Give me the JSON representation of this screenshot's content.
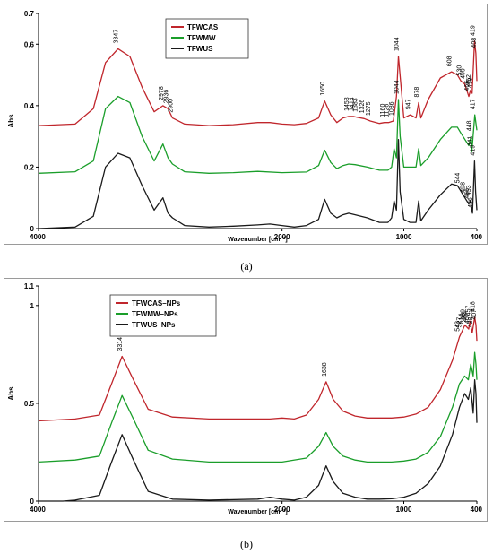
{
  "chart_data": [
    {
      "type": "line",
      "title": "",
      "xlabel": "Wavenumber [cm⁻¹]",
      "ylabel": "Abs",
      "xlim": [
        4000,
        400
      ],
      "ylim": [
        0,
        0.7
      ],
      "xticks": [
        "4000",
        "2000",
        "1000",
        "400"
      ],
      "yticks": [
        "0",
        "0.2",
        "0.4",
        "0.6",
        "0.7"
      ],
      "legend": {
        "position": "top-left"
      },
      "series": [
        {
          "name": "TFWCAS",
          "color": "#c0262c",
          "x": [
            4000,
            3700,
            3550,
            3450,
            3347,
            3250,
            3150,
            3050,
            2978,
            2936,
            2900,
            2800,
            2600,
            2400,
            2200,
            2100,
            2000,
            1900,
            1800,
            1700,
            1650,
            1600,
            1550,
            1500,
            1453,
            1414,
            1383,
            1326,
            1275,
            1200,
            1160,
            1126,
            1086,
            1060,
            1044,
            1020,
            1000,
            947,
            900,
            878,
            860,
            800,
            700,
            608,
            560,
            530,
            499,
            466,
            452,
            439,
            419,
            408,
            400
          ],
          "y": [
            0.335,
            0.34,
            0.39,
            0.54,
            0.585,
            0.56,
            0.46,
            0.38,
            0.4,
            0.39,
            0.36,
            0.34,
            0.335,
            0.338,
            0.345,
            0.345,
            0.34,
            0.338,
            0.342,
            0.36,
            0.415,
            0.37,
            0.345,
            0.36,
            0.365,
            0.365,
            0.362,
            0.358,
            0.35,
            0.342,
            0.345,
            0.345,
            0.35,
            0.43,
            0.56,
            0.45,
            0.36,
            0.37,
            0.36,
            0.41,
            0.36,
            0.42,
            0.49,
            0.51,
            0.5,
            0.48,
            0.47,
            0.43,
            0.45,
            0.44,
            0.61,
            0.57,
            0.48
          ]
        },
        {
          "name": "TFWMW",
          "color": "#1a9e2a",
          "x": [
            4000,
            3700,
            3550,
            3450,
            3347,
            3250,
            3150,
            3050,
            2978,
            2936,
            2900,
            2800,
            2600,
            2400,
            2200,
            2000,
            1800,
            1700,
            1650,
            1600,
            1550,
            1500,
            1453,
            1400,
            1300,
            1200,
            1130,
            1100,
            1080,
            1060,
            1044,
            1030,
            1000,
            950,
            900,
            878,
            860,
            800,
            700,
            608,
            560,
            530,
            466,
            448,
            441,
            417,
            400
          ],
          "y": [
            0.18,
            0.185,
            0.22,
            0.39,
            0.43,
            0.41,
            0.3,
            0.22,
            0.275,
            0.23,
            0.21,
            0.185,
            0.18,
            0.182,
            0.186,
            0.182,
            0.184,
            0.205,
            0.255,
            0.215,
            0.195,
            0.205,
            0.21,
            0.208,
            0.2,
            0.19,
            0.19,
            0.2,
            0.26,
            0.23,
            0.42,
            0.3,
            0.2,
            0.2,
            0.2,
            0.26,
            0.205,
            0.23,
            0.29,
            0.33,
            0.33,
            0.31,
            0.27,
            0.3,
            0.25,
            0.37,
            0.32
          ]
        },
        {
          "name": "TFWUS",
          "color": "#1a1a1a",
          "x": [
            4000,
            3700,
            3550,
            3450,
            3347,
            3250,
            3150,
            3050,
            2978,
            2936,
            2900,
            2800,
            2600,
            2400,
            2200,
            2100,
            2000,
            1900,
            1800,
            1700,
            1650,
            1600,
            1550,
            1500,
            1453,
            1400,
            1300,
            1200,
            1130,
            1100,
            1080,
            1060,
            1044,
            1030,
            1000,
            950,
            900,
            878,
            860,
            800,
            700,
            608,
            560,
            544,
            498,
            466,
            453,
            436,
            419,
            410,
            400
          ],
          "y": [
            0,
            0.005,
            0.04,
            0.2,
            0.245,
            0.23,
            0.14,
            0.06,
            0.1,
            0.05,
            0.035,
            0.01,
            0.005,
            0.008,
            0.012,
            0.015,
            0.01,
            0.005,
            0.01,
            0.03,
            0.095,
            0.05,
            0.035,
            0.045,
            0.05,
            0.045,
            0.035,
            0.02,
            0.02,
            0.035,
            0.09,
            0.06,
            0.29,
            0.12,
            0.03,
            0.02,
            0.02,
            0.09,
            0.025,
            0.06,
            0.11,
            0.145,
            0.14,
            0.13,
            0.1,
            0.08,
            0.09,
            0.05,
            0.22,
            0.12,
            0.06
          ]
        }
      ],
      "annotations": [
        "3347",
        "2978",
        "2936",
        "2900",
        "1650",
        "1453",
        "1414",
        "1383",
        "1326",
        "1275",
        "1160",
        "1126",
        "1086",
        "1044",
        "947",
        "878",
        "608",
        "530",
        "499",
        "466",
        "452",
        "439",
        "419",
        "408",
        "1044",
        "448",
        "441",
        "417",
        "544",
        "498",
        "466",
        "453",
        "436",
        "419"
      ]
    },
    {
      "type": "line",
      "title": "",
      "xlabel": "Wavenumber [cm⁻¹]",
      "ylabel": "Abs",
      "xlim": [
        4000,
        400
      ],
      "ylim": [
        0,
        1.1
      ],
      "xticks": [
        "4000",
        "2000",
        "1000",
        "400"
      ],
      "yticks": [
        "0",
        "0.5",
        "1",
        "1.1"
      ],
      "legend": {
        "position": "top-left"
      },
      "series": [
        {
          "name": "TFWCAS–NPs",
          "color": "#c0262c",
          "x": [
            4000,
            3700,
            3500,
            3400,
            3314,
            3220,
            3100,
            2900,
            2600,
            2300,
            2100,
            2000,
            1900,
            1800,
            1700,
            1638,
            1580,
            1500,
            1400,
            1300,
            1200,
            1100,
            1000,
            900,
            800,
            700,
            600,
            543,
            527,
            499,
            467,
            457,
            438,
            418,
            407,
            400
          ],
          "y": [
            0.41,
            0.42,
            0.44,
            0.6,
            0.74,
            0.62,
            0.47,
            0.43,
            0.42,
            0.42,
            0.42,
            0.425,
            0.42,
            0.44,
            0.52,
            0.61,
            0.52,
            0.46,
            0.435,
            0.425,
            0.425,
            0.425,
            0.43,
            0.445,
            0.48,
            0.57,
            0.72,
            0.84,
            0.86,
            0.9,
            0.88,
            0.92,
            0.86,
            0.94,
            0.9,
            0.82
          ]
        },
        {
          "name": "TFWMW–NPs",
          "color": "#1a9e2a",
          "x": [
            4000,
            3700,
            3500,
            3400,
            3314,
            3220,
            3100,
            2900,
            2600,
            2300,
            2000,
            1800,
            1700,
            1638,
            1580,
            1500,
            1400,
            1300,
            1200,
            1100,
            1000,
            900,
            800,
            700,
            600,
            543,
            500,
            470,
            450,
            430,
            418,
            407,
            400
          ],
          "y": [
            0.2,
            0.21,
            0.23,
            0.4,
            0.54,
            0.42,
            0.26,
            0.215,
            0.2,
            0.2,
            0.2,
            0.22,
            0.28,
            0.35,
            0.28,
            0.23,
            0.21,
            0.2,
            0.2,
            0.2,
            0.205,
            0.215,
            0.25,
            0.33,
            0.48,
            0.6,
            0.64,
            0.62,
            0.7,
            0.64,
            0.76,
            0.7,
            0.62
          ]
        },
        {
          "name": "TFWUS–NPs",
          "color": "#1a1a1a",
          "x": [
            4000,
            3800,
            3700,
            3500,
            3400,
            3314,
            3220,
            3100,
            2900,
            2600,
            2200,
            2100,
            2000,
            1900,
            1800,
            1700,
            1638,
            1580,
            1500,
            1400,
            1300,
            1200,
            1100,
            1000,
            900,
            800,
            700,
            600,
            543,
            500,
            470,
            450,
            430,
            418,
            407,
            400
          ],
          "y": [
            0,
            0,
            0.005,
            0.03,
            0.2,
            0.34,
            0.21,
            0.05,
            0.01,
            0.005,
            0.01,
            0.02,
            0.01,
            0.005,
            0.02,
            0.08,
            0.18,
            0.1,
            0.04,
            0.02,
            0.01,
            0.01,
            0.012,
            0.02,
            0.04,
            0.09,
            0.18,
            0.34,
            0.48,
            0.55,
            0.52,
            0.58,
            0.45,
            0.62,
            0.55,
            0.4
          ]
        }
      ],
      "annotations": [
        "3314",
        "1638",
        "543",
        "527",
        "514",
        "499",
        "484",
        "467",
        "457",
        "438",
        "418",
        "407"
      ]
    }
  ],
  "captions": [
    "(a)",
    "(b)"
  ]
}
